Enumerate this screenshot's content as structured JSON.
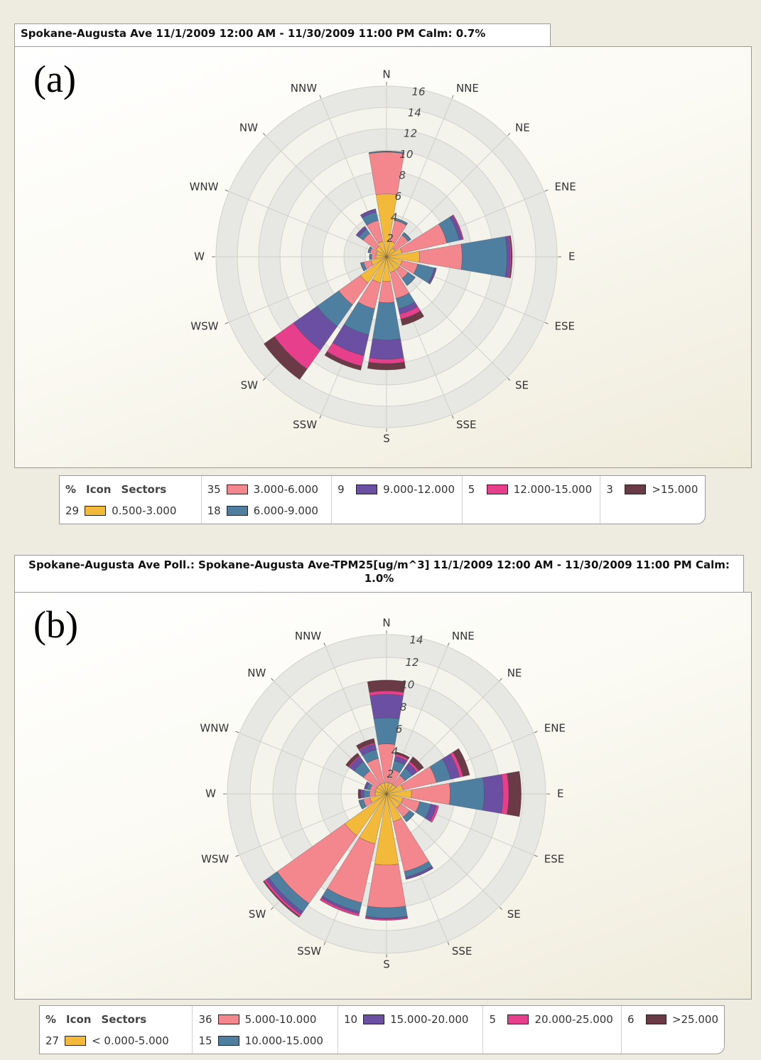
{
  "chart_data": [
    {
      "type": "wind_rose",
      "title": "Spokane-Augusta Ave 11/1/2009 12:00 AM - 11/30/2009 11:00 PM Calm: 0.7%",
      "panel_label": "(a)",
      "directions": [
        "N",
        "NNE",
        "NE",
        "ENE",
        "E",
        "ESE",
        "SE",
        "SSE",
        "S",
        "SSW",
        "SW",
        "WSW",
        "W",
        "WNW",
        "NW",
        "NNW"
      ],
      "rlim": [
        0,
        16
      ],
      "rticks": [
        2,
        4,
        6,
        8,
        10,
        12,
        14,
        16
      ],
      "legend_header": [
        "%",
        "Icon",
        "Sectors"
      ],
      "series": [
        {
          "name": "0.500-3.000",
          "percent": 29,
          "color": "#f2b93b",
          "values": [
            5.9,
            1.5,
            1,
            1.5,
            3.1,
            1.5,
            1.5,
            1.5,
            2.3,
            2.5,
            3,
            1.5,
            1,
            1,
            1.2,
            1.5
          ]
        },
        {
          "name": "3.000-6.000",
          "percent": 35,
          "color": "#f4868e",
          "values": [
            3.9,
            2,
            1.5,
            4.3,
            4,
            1.5,
            1,
            2.5,
            2,
            2.5,
            2.5,
            0.7,
            0.4,
            0.6,
            1.5,
            2
          ]
        },
        {
          "name": "6.000-9.000",
          "percent": 18,
          "color": "#4f7fa0",
          "values": [
            0.1,
            0.2,
            0.3,
            1.2,
            4.2,
            1.6,
            0.8,
            1,
            3.5,
            2.5,
            2.5,
            0.3,
            0.2,
            0.2,
            0.5,
            0.8
          ]
        },
        {
          "name": "9.000-12.000",
          "percent": 9,
          "color": "#6a4fa3",
          "values": [
            0,
            0,
            0,
            0.3,
            0.3,
            0.2,
            0,
            0.5,
            1.8,
            2,
            2.7,
            0,
            0,
            0,
            0.3,
            0.3
          ]
        },
        {
          "name": "12.000-15.000",
          "percent": 5,
          "color": "#e83f8d",
          "values": [
            0,
            0,
            0,
            0.1,
            0.1,
            0,
            0,
            0.5,
            0.4,
            1,
            2.2,
            0,
            0,
            0,
            0,
            0
          ]
        },
        {
          "name": ">15.000",
          "percent": 3,
          "color": "#6b3a47",
          "values": [
            0,
            0,
            0,
            0,
            0.1,
            0,
            0,
            0.6,
            0.6,
            0.4,
            1.2,
            0,
            0,
            0,
            0,
            0
          ]
        }
      ]
    },
    {
      "type": "wind_rose",
      "title": "Spokane-Augusta Ave Poll.: Spokane-Augusta Ave-TPM25[ug/m^3] 11/1/2009 12:00 AM - 11/30/2009 11:00 PM Calm: 1.0%",
      "panel_label": "(b)",
      "directions": [
        "N",
        "NNE",
        "NE",
        "ENE",
        "E",
        "ESE",
        "SE",
        "SSE",
        "S",
        "SSW",
        "SW",
        "WSW",
        "W",
        "WNW",
        "NW",
        "NNW"
      ],
      "rlim": [
        0,
        14
      ],
      "rticks": [
        2,
        4,
        6,
        8,
        10,
        12,
        14
      ],
      "legend_header": [
        "%",
        "Icon",
        "Sectors"
      ],
      "series": [
        {
          "name": "< 0.000-5.000",
          "percent": 27,
          "color": "#f2b93b",
          "values": [
            1,
            1,
            1,
            1.5,
            2.2,
            1.5,
            1.5,
            2.5,
            6.25,
            4.5,
            4.5,
            1.5,
            1,
            1,
            1,
            1
          ]
        },
        {
          "name": "5.000-10.000",
          "percent": 36,
          "color": "#f4868e",
          "values": [
            3.4,
            1.2,
            1,
            3,
            3.4,
            1.5,
            1,
            4.5,
            3.75,
            5.3,
            7.3,
            0.6,
            0.5,
            0.5,
            1.5,
            2.2
          ]
        },
        {
          "name": "10.000-15.000",
          "percent": 15,
          "color": "#4f7fa0",
          "values": [
            2.3,
            0.8,
            0.8,
            1.3,
            3,
            1,
            0.5,
            0.5,
            0.9,
            0.8,
            0.9,
            0.4,
            0.5,
            0.3,
            1,
            0.8
          ]
        },
        {
          "name": "15.000-20.000",
          "percent": 10,
          "color": "#6a4fa3",
          "values": [
            2.05,
            0.4,
            0.5,
            0.8,
            1.65,
            0.5,
            0,
            0.2,
            0.1,
            0.2,
            0.3,
            0,
            0.3,
            0.2,
            0.5,
            0.5
          ]
        },
        {
          "name": "20.000-25.000",
          "percent": 5,
          "color": "#e83f8d",
          "values": [
            0.3,
            0.2,
            0.2,
            0.3,
            0.5,
            0.2,
            0,
            0,
            0.1,
            0.2,
            0.2,
            0,
            0,
            0,
            0.1,
            0.1
          ]
        },
        {
          "name": ">25.000",
          "percent": 6,
          "color": "#6b3a47",
          "values": [
            0.95,
            0.2,
            0.5,
            0.6,
            1.1,
            0,
            0,
            0,
            0,
            0,
            0.1,
            0,
            0.2,
            0,
            0.3,
            0.4
          ]
        }
      ]
    }
  ]
}
